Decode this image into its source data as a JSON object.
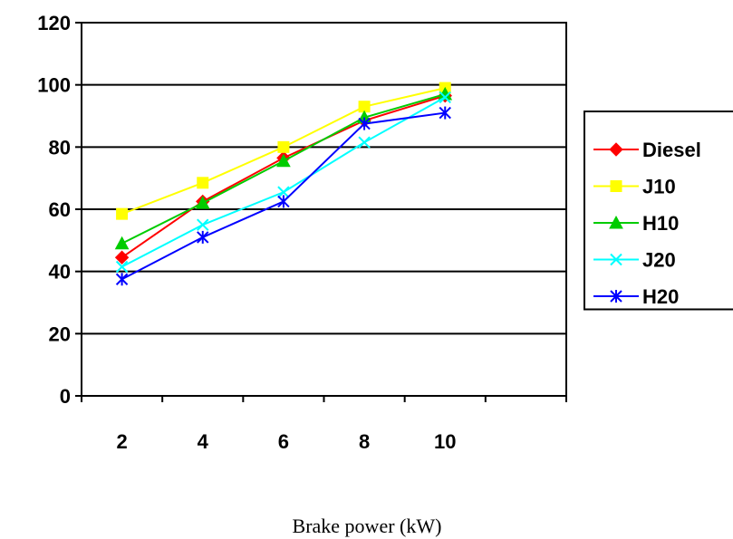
{
  "chart_data": {
    "type": "line",
    "title": "",
    "xlabel": "Brake power (kW)",
    "ylabel": "",
    "categories": [
      "2",
      "4",
      "6",
      "8",
      "10"
    ],
    "extra_category_slots": 1,
    "ylim": [
      0,
      120
    ],
    "yticks": [
      0,
      20,
      40,
      60,
      80,
      100,
      120
    ],
    "grid": "horizontal",
    "legend_position": "right",
    "series": [
      {
        "name": "Diesel",
        "color": "#ff0000",
        "marker": "diamond",
        "values": [
          44.5,
          62.5,
          76.5,
          88.5,
          96.5
        ]
      },
      {
        "name": "J10",
        "color": "#ffff00",
        "marker": "square",
        "values": [
          58.5,
          68.5,
          80,
          93,
          99
        ]
      },
      {
        "name": "H10",
        "color": "#00cc00",
        "marker": "triangle",
        "values": [
          49,
          62,
          75.5,
          89.5,
          97
        ]
      },
      {
        "name": "J20",
        "color": "#00ffff",
        "marker": "x",
        "values": [
          41.5,
          55,
          65.5,
          81.5,
          96
        ]
      },
      {
        "name": "H20",
        "color": "#0000ff",
        "marker": "star",
        "values": [
          37.5,
          51,
          62.5,
          87.5,
          91
        ]
      }
    ]
  }
}
